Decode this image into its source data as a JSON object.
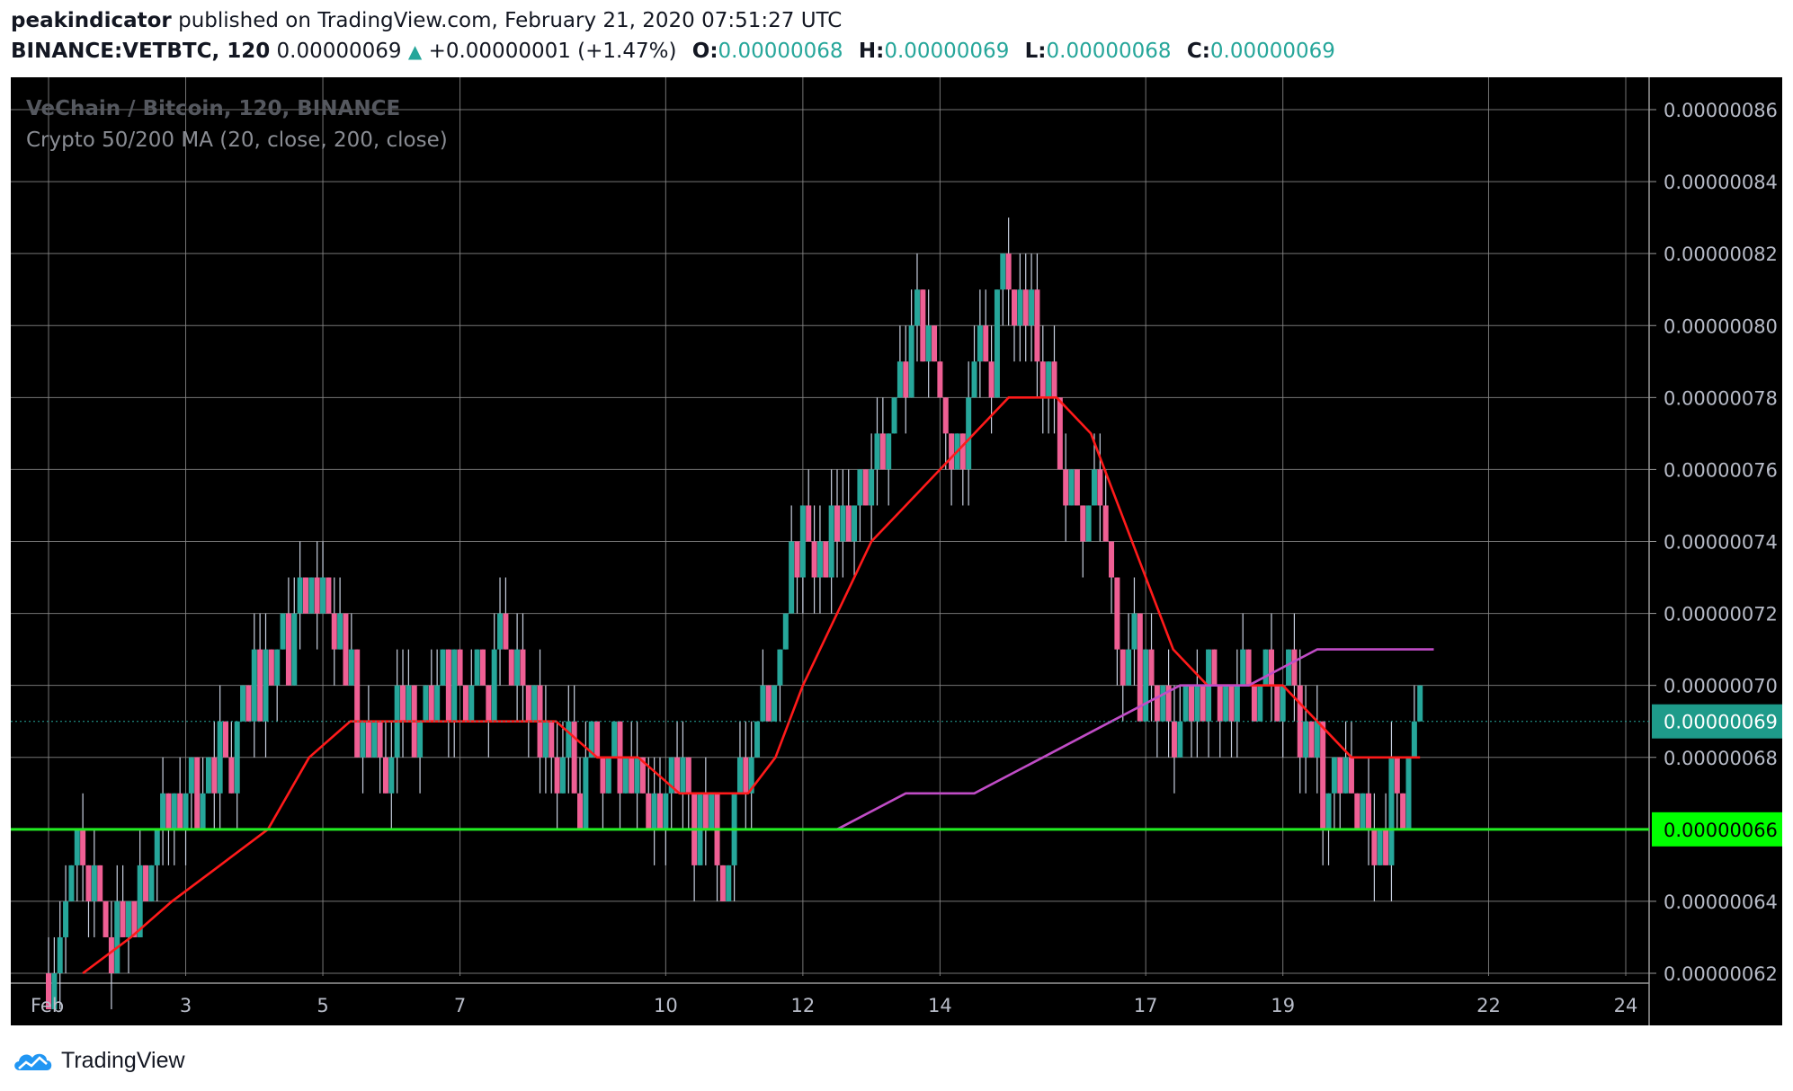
{
  "header": {
    "publisher": "peakindicator",
    "published_text": "published on TradingView.com, February 21, 2020 07:51:27 UTC",
    "symbol": "BINANCE:VETBTC, 120",
    "last": "0.00000069",
    "change": "+0.00000001 (+1.47%)",
    "o_label": "O:",
    "o_value": "0.00000068",
    "h_label": "H:",
    "h_value": "0.00000069",
    "l_label": "L:",
    "l_value": "0.00000068",
    "c_label": "C:",
    "c_value": "0.00000069"
  },
  "legend": {
    "title": "VeChain / Bitcoin, 120, BINANCE",
    "indicator": "Crypto 50/200 MA (20, close, 200, close)"
  },
  "footer": {
    "brand": "TradingView"
  },
  "colors": {
    "background": "#000000",
    "grid": "#8a8a8a",
    "candle_up": "#26a69a",
    "candle_down": "#ef5f94",
    "wick": "#c8d0e0",
    "ma_fast": "#ff1a1a",
    "ma_slow": "#c04cc6",
    "support": "#22ee22",
    "last_price_bg": "#1e9b8a",
    "support_label_bg": "#00ff00"
  },
  "chart_data": {
    "type": "candlestick",
    "title": "VeChain / Bitcoin, 120, BINANCE",
    "x_ticks": [
      {
        "day": 1,
        "label": "Feb"
      },
      {
        "day": 3,
        "label": "3"
      },
      {
        "day": 5,
        "label": "5"
      },
      {
        "day": 7,
        "label": "7"
      },
      {
        "day": 10,
        "label": "10"
      },
      {
        "day": 12,
        "label": "12"
      },
      {
        "day": 14,
        "label": "14"
      },
      {
        "day": 17,
        "label": "17"
      },
      {
        "day": 19,
        "label": "19"
      },
      {
        "day": 22,
        "label": "22"
      },
      {
        "day": 24,
        "label": "24"
      }
    ],
    "xlim": [
      0.62,
      24.0
    ],
    "ylim": [
      6.2e-07,
      8.6e-07
    ],
    "y_ticks": [
      "0.00000086",
      "0.00000084",
      "0.00000082",
      "0.00000080",
      "0.00000078",
      "0.00000076",
      "0.00000074",
      "0.00000072",
      "0.00000070",
      "0.00000068",
      "0.00000064",
      "0.00000062"
    ],
    "last_price": {
      "value": 6.9e-07,
      "label": "0.00000069"
    },
    "support_line": {
      "value": 6.6e-07,
      "label": "0.00000066"
    },
    "price_path": [
      [
        1.0,
        6.2e-07
      ],
      [
        1.4,
        6.5e-07
      ],
      [
        1.9,
        6.3e-07
      ],
      [
        2.5,
        6.5e-07
      ],
      [
        3.0,
        6.7e-07
      ],
      [
        3.5,
        6.8e-07
      ],
      [
        4.0,
        7e-07
      ],
      [
        4.5,
        7.1e-07
      ],
      [
        5.0,
        7.2e-07
      ],
      [
        5.3,
        7e-07
      ],
      [
        5.7,
        6.8e-07
      ],
      [
        6.2,
        6.9e-07
      ],
      [
        6.8,
        7e-07
      ],
      [
        7.2,
        7e-07
      ],
      [
        7.6,
        7.1e-07
      ],
      [
        8.0,
        6.9e-07
      ],
      [
        8.5,
        6.8e-07
      ],
      [
        9.0,
        6.7e-07
      ],
      [
        9.5,
        6.7e-07
      ],
      [
        10.0,
        6.7e-07
      ],
      [
        10.4,
        6.6e-07
      ],
      [
        10.8,
        6.6e-07
      ],
      [
        11.2,
        6.7e-07
      ],
      [
        11.5,
        7e-07
      ],
      [
        11.8,
        7.3e-07
      ],
      [
        12.2,
        7.5e-07
      ],
      [
        12.6,
        7.4e-07
      ],
      [
        13.0,
        7.6e-07
      ],
      [
        13.4,
        7.8e-07
      ],
      [
        13.8,
        8e-07
      ],
      [
        14.2,
        7.7e-07
      ],
      [
        14.6,
        7.9e-07
      ],
      [
        15.0,
        8.1e-07
      ],
      [
        15.4,
        8e-07
      ],
      [
        15.8,
        7.6e-07
      ],
      [
        16.3,
        7.5e-07
      ],
      [
        16.7,
        7.1e-07
      ],
      [
        17.0,
        7e-07
      ],
      [
        17.4,
        6.9e-07
      ],
      [
        17.8,
        7e-07
      ],
      [
        18.3,
        7e-07
      ],
      [
        18.8,
        7e-07
      ],
      [
        19.2,
        6.9e-07
      ],
      [
        19.6,
        6.7e-07
      ],
      [
        20.0,
        6.7e-07
      ],
      [
        20.4,
        6.7e-07
      ],
      [
        20.8,
        6.8e-07
      ],
      [
        21.0,
        6.9e-07
      ]
    ],
    "series": [
      {
        "name": "MA 20",
        "color": "#ff1a1a",
        "points": [
          [
            1.5,
            6.2e-07
          ],
          [
            2.2,
            6.3e-07
          ],
          [
            2.8,
            6.4e-07
          ],
          [
            3.5,
            6.5e-07
          ],
          [
            4.2,
            6.6e-07
          ],
          [
            4.8,
            6.8e-07
          ],
          [
            5.4,
            6.9e-07
          ],
          [
            6.0,
            6.9e-07
          ],
          [
            6.6,
            6.9e-07
          ],
          [
            7.2,
            6.9e-07
          ],
          [
            7.8,
            6.9e-07
          ],
          [
            8.4,
            6.9e-07
          ],
          [
            9.0,
            6.8e-07
          ],
          [
            9.6,
            6.8e-07
          ],
          [
            10.2,
            6.7e-07
          ],
          [
            10.8,
            6.7e-07
          ],
          [
            11.2,
            6.7e-07
          ],
          [
            11.6,
            6.8e-07
          ],
          [
            12.0,
            7e-07
          ],
          [
            12.5,
            7.2e-07
          ],
          [
            13.0,
            7.4e-07
          ],
          [
            13.5,
            7.5e-07
          ],
          [
            14.0,
            7.6e-07
          ],
          [
            14.5,
            7.7e-07
          ],
          [
            15.0,
            7.8e-07
          ],
          [
            15.3,
            7.8e-07
          ],
          [
            15.7,
            7.8e-07
          ],
          [
            16.2,
            7.7e-07
          ],
          [
            16.6,
            7.5e-07
          ],
          [
            17.0,
            7.3e-07
          ],
          [
            17.4,
            7.1e-07
          ],
          [
            17.9,
            7e-07
          ],
          [
            18.5,
            7e-07
          ],
          [
            19.0,
            7e-07
          ],
          [
            19.5,
            6.9e-07
          ],
          [
            20.0,
            6.8e-07
          ],
          [
            20.5,
            6.8e-07
          ],
          [
            21.0,
            6.8e-07
          ]
        ]
      },
      {
        "name": "MA 200",
        "color": "#c04cc6",
        "points": [
          [
            0.62,
            6.6e-07
          ],
          [
            1.5,
            6.6e-07
          ],
          [
            2.5,
            6.6e-07
          ],
          [
            3.5,
            6.6e-07
          ],
          [
            4.5,
            6.6e-07
          ],
          [
            5.5,
            6.6e-07
          ],
          [
            6.5,
            6.6e-07
          ],
          [
            7.5,
            6.6e-07
          ],
          [
            8.5,
            6.6e-07
          ],
          [
            9.5,
            6.6e-07
          ],
          [
            10.5,
            6.6e-07
          ],
          [
            11.5,
            6.6e-07
          ],
          [
            12.5,
            6.6e-07
          ],
          [
            13.5,
            6.7e-07
          ],
          [
            14.5,
            6.7e-07
          ],
          [
            15.5,
            6.8e-07
          ],
          [
            16.5,
            6.9e-07
          ],
          [
            17.5,
            7e-07
          ],
          [
            18.5,
            7e-07
          ],
          [
            19.5,
            7.1e-07
          ],
          [
            20.5,
            7.1e-07
          ],
          [
            21.2,
            7.1e-07
          ]
        ]
      }
    ]
  }
}
